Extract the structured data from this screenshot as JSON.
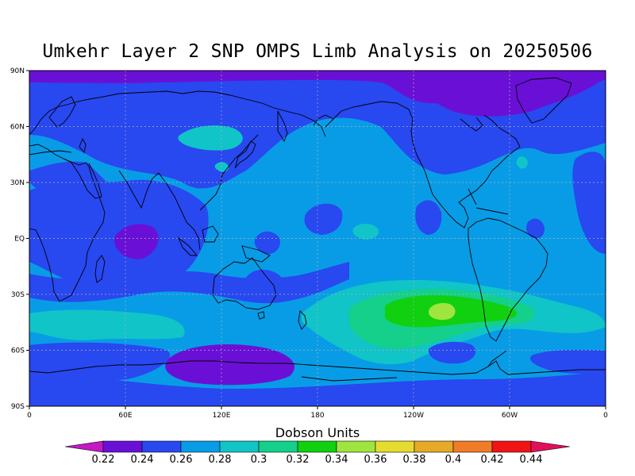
{
  "title": "Umkehr Layer 2 SNP OMPS Limb Analysis on 20250506",
  "map": {
    "projection": "equirectangular",
    "lon_range": [
      0,
      360
    ],
    "lat_range": [
      -90,
      90
    ],
    "lat_ticks": [
      "90N",
      "60N",
      "30N",
      "EQ",
      "30S",
      "60S",
      "90S"
    ],
    "lon_ticks": [
      "0",
      "60E",
      "120E",
      "180",
      "120W",
      "60W",
      "0"
    ],
    "gridlines": true
  },
  "colorbar": {
    "title": "Dobson Units",
    "levels": [
      "0.22",
      "0.24",
      "0.26",
      "0.28",
      "0.3",
      "0.32",
      "0.34",
      "0.36",
      "0.38",
      "0.4",
      "0.42",
      "0.44"
    ],
    "colors": [
      "#c419c4",
      "#6a10d6",
      "#2848f0",
      "#089ce6",
      "#10c4c8",
      "#14d08a",
      "#10d010",
      "#a0e440",
      "#e6dc30",
      "#e6aa28",
      "#f07c28",
      "#f01414",
      "#e0105a"
    ]
  },
  "chart_data": {
    "type": "heatmap",
    "title": "Umkehr Layer 2 SNP OMPS Limb Analysis on 20250506",
    "units": "Dobson Units",
    "value_range": [
      0.22,
      0.44
    ],
    "background_level": "0.26-0.28",
    "regions": [
      {
        "name": "arctic",
        "level": "0.22-0.24"
      },
      {
        "name": "north-mid-latitudes",
        "level": "0.24-0.26"
      },
      {
        "name": "tropics",
        "level": "0.26-0.28"
      },
      {
        "name": "indian-ocean-minimum",
        "level": "0.22-0.24"
      },
      {
        "name": "siberia-maximum",
        "level": "0.28-0.30"
      },
      {
        "name": "south-pacific-maximum",
        "level": "0.34-0.36"
      },
      {
        "name": "antarctic",
        "level": "0.22-0.24"
      }
    ]
  }
}
